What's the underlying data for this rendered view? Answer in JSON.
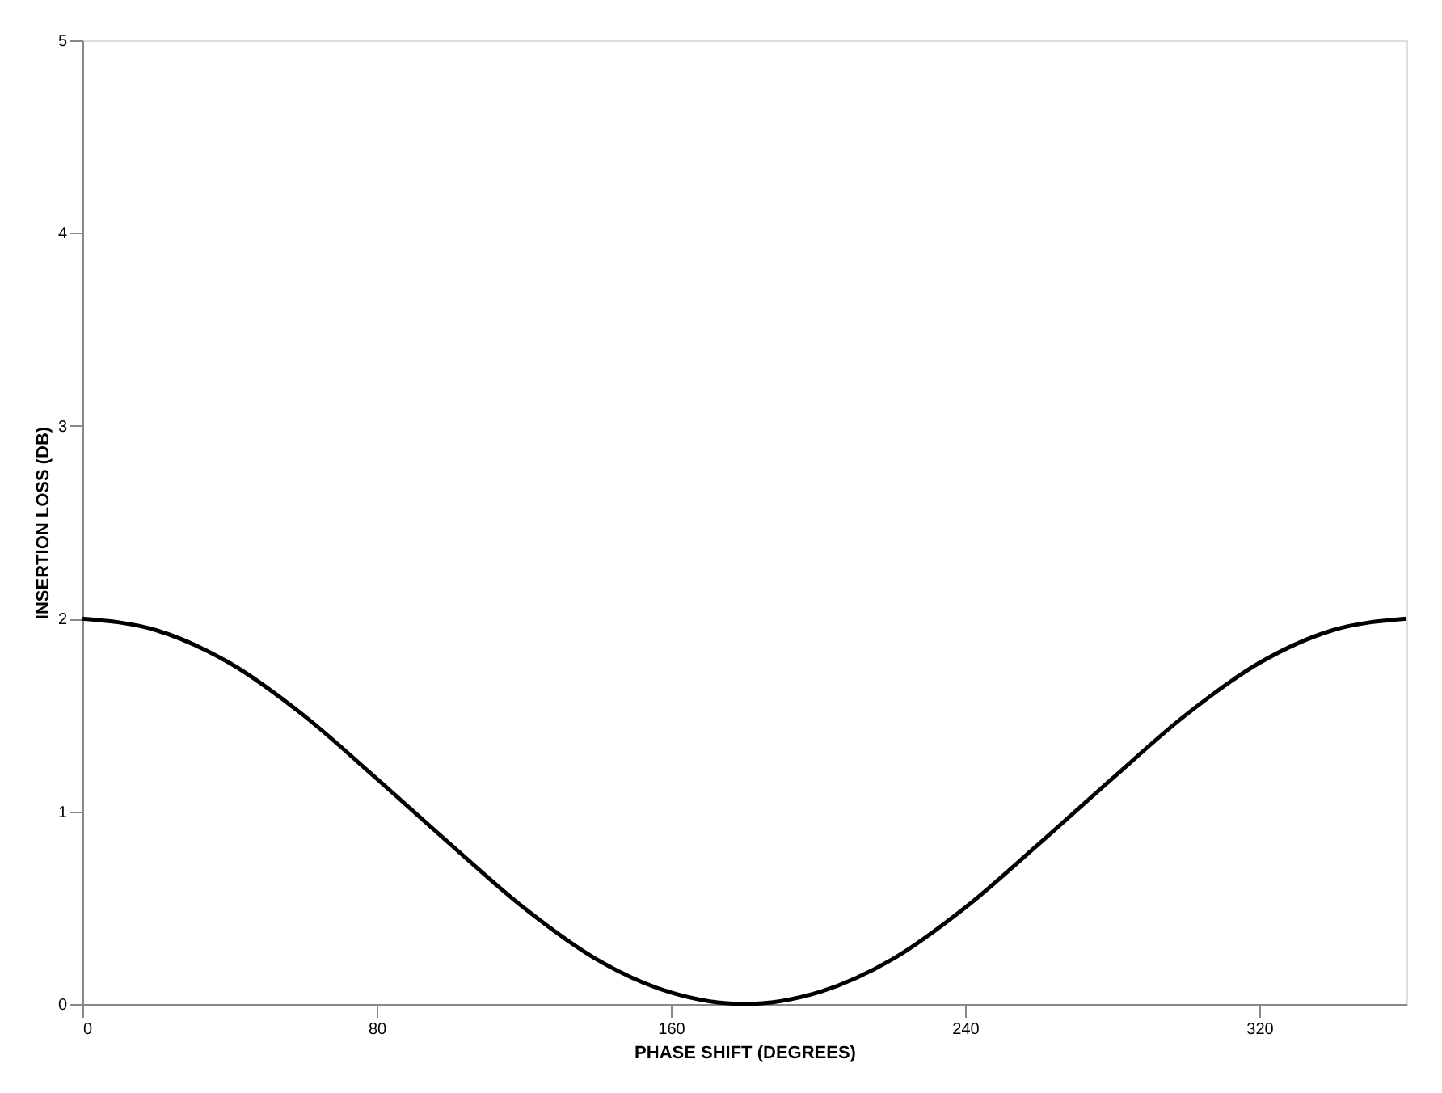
{
  "chart_data": {
    "type": "line",
    "xlabel": "PHASE SHIFT (DEGREES)",
    "ylabel": "INSERTION LOSS (DB)",
    "x": [
      0,
      20,
      40,
      60,
      80,
      100,
      120,
      140,
      160,
      180,
      200,
      220,
      240,
      260,
      280,
      300,
      320,
      340,
      360
    ],
    "series": [
      {
        "color": "#000000",
        "values": [
          2.0,
          1.94,
          1.77,
          1.5,
          1.17,
          0.83,
          0.5,
          0.23,
          0.06,
          0.0,
          0.06,
          0.23,
          0.5,
          0.83,
          1.17,
          1.5,
          1.77,
          1.94,
          2.0
        ]
      }
    ],
    "xlim": [
      0,
      360
    ],
    "xticks": [
      0,
      80,
      160,
      240,
      320
    ],
    "ylim": [
      0,
      5
    ],
    "yticks": [
      0,
      1,
      2,
      3,
      4,
      5
    ],
    "grid": false,
    "marker": "none",
    "line_style": "solid"
  }
}
